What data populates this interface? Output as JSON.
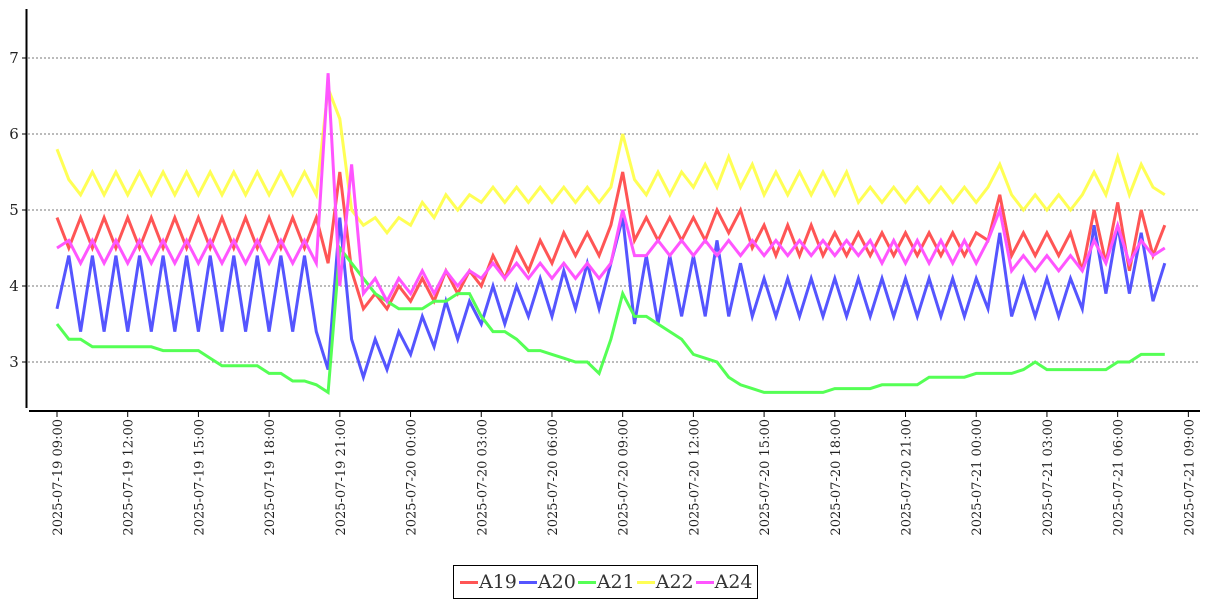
{
  "chart_data": {
    "type": "line",
    "title": "",
    "xlabel": "",
    "ylabel": "",
    "x_start": "2025-07-19 09:00",
    "x_step_minutes": 30,
    "ylim": [
      2.4,
      7.65
    ],
    "yticks": [
      3,
      4,
      5,
      6,
      7
    ],
    "xticks": [
      "2025-07-19  09:00",
      "2025-07-19  12:00",
      "2025-07-19  15:00",
      "2025-07-19  18:00",
      "2025-07-19  21:00",
      "2025-07-20  00:00",
      "2025-07-20  03:00",
      "2025-07-20  06:00",
      "2025-07-20  09:00",
      "2025-07-20  12:00",
      "2025-07-20  15:00",
      "2025-07-20  18:00",
      "2025-07-20  21:00",
      "2025-07-21  00:00",
      "2025-07-21  03:00",
      "2025-07-21  06:00",
      "2025-07-21  09:00"
    ],
    "grid": "horizontal dotted",
    "legend_position": "bottom-center",
    "series": [
      {
        "name": "A19",
        "color": "#ff5555",
        "values": [
          4.9,
          4.5,
          4.9,
          4.5,
          4.9,
          4.5,
          4.9,
          4.5,
          4.9,
          4.5,
          4.9,
          4.5,
          4.9,
          4.5,
          4.9,
          4.5,
          4.9,
          4.5,
          4.9,
          4.5,
          4.9,
          4.5,
          4.9,
          4.3,
          5.5,
          4.2,
          3.7,
          3.9,
          3.7,
          4.0,
          3.8,
          4.1,
          3.8,
          4.2,
          3.9,
          4.2,
          4.0,
          4.4,
          4.1,
          4.5,
          4.2,
          4.6,
          4.3,
          4.7,
          4.4,
          4.7,
          4.4,
          4.8,
          5.5,
          4.6,
          4.9,
          4.6,
          4.9,
          4.6,
          4.9,
          4.6,
          5.0,
          4.7,
          5.0,
          4.5,
          4.8,
          4.4,
          4.8,
          4.4,
          4.8,
          4.4,
          4.7,
          4.4,
          4.7,
          4.4,
          4.7,
          4.4,
          4.7,
          4.4,
          4.7,
          4.4,
          4.7,
          4.4,
          4.7,
          4.6,
          5.2,
          4.4,
          4.7,
          4.4,
          4.7,
          4.4,
          4.7,
          4.2,
          5.0,
          4.3,
          5.1,
          4.2,
          5.0,
          4.4,
          4.8
        ]
      },
      {
        "name": "A20",
        "color": "#5555ff",
        "values": [
          3.7,
          4.4,
          3.4,
          4.4,
          3.4,
          4.4,
          3.4,
          4.4,
          3.4,
          4.4,
          3.4,
          4.4,
          3.4,
          4.4,
          3.4,
          4.4,
          3.4,
          4.4,
          3.4,
          4.4,
          3.4,
          4.4,
          3.4,
          2.9,
          4.9,
          3.3,
          2.8,
          3.3,
          2.9,
          3.4,
          3.1,
          3.6,
          3.2,
          3.8,
          3.3,
          3.8,
          3.5,
          4.0,
          3.5,
          4.0,
          3.6,
          4.1,
          3.6,
          4.2,
          3.7,
          4.3,
          3.7,
          4.3,
          4.9,
          3.5,
          4.4,
          3.5,
          4.4,
          3.6,
          4.4,
          3.6,
          4.6,
          3.6,
          4.3,
          3.6,
          4.1,
          3.6,
          4.1,
          3.6,
          4.1,
          3.6,
          4.1,
          3.6,
          4.1,
          3.6,
          4.1,
          3.6,
          4.1,
          3.6,
          4.1,
          3.6,
          4.1,
          3.6,
          4.1,
          3.7,
          4.7,
          3.6,
          4.1,
          3.6,
          4.1,
          3.6,
          4.1,
          3.7,
          4.8,
          3.9,
          4.8,
          3.9,
          4.7,
          3.8,
          4.3
        ]
      },
      {
        "name": "A21",
        "color": "#55ff55",
        "values": [
          3.5,
          3.3,
          3.3,
          3.2,
          3.2,
          3.2,
          3.2,
          3.2,
          3.2,
          3.15,
          3.15,
          3.15,
          3.15,
          3.05,
          2.95,
          2.95,
          2.95,
          2.95,
          2.85,
          2.85,
          2.75,
          2.75,
          2.7,
          2.6,
          4.5,
          4.3,
          4.1,
          3.9,
          3.8,
          3.7,
          3.7,
          3.7,
          3.8,
          3.8,
          3.9,
          3.9,
          3.6,
          3.4,
          3.4,
          3.3,
          3.15,
          3.15,
          3.1,
          3.05,
          3.0,
          3.0,
          2.85,
          3.3,
          3.9,
          3.6,
          3.6,
          3.5,
          3.4,
          3.3,
          3.1,
          3.05,
          3.0,
          2.8,
          2.7,
          2.65,
          2.6,
          2.6,
          2.6,
          2.6,
          2.6,
          2.6,
          2.65,
          2.65,
          2.65,
          2.65,
          2.7,
          2.7,
          2.7,
          2.7,
          2.8,
          2.8,
          2.8,
          2.8,
          2.85,
          2.85,
          2.85,
          2.85,
          2.9,
          3.0,
          2.9,
          2.9,
          2.9,
          2.9,
          2.9,
          2.9,
          3.0,
          3.0,
          3.1,
          3.1,
          3.1
        ]
      },
      {
        "name": "A22",
        "color": "#ffff55",
        "values": [
          5.8,
          5.4,
          5.2,
          5.5,
          5.2,
          5.5,
          5.2,
          5.5,
          5.2,
          5.5,
          5.2,
          5.5,
          5.2,
          5.5,
          5.2,
          5.5,
          5.2,
          5.5,
          5.2,
          5.5,
          5.2,
          5.5,
          5.2,
          6.6,
          6.2,
          5.0,
          4.8,
          4.9,
          4.7,
          4.9,
          4.8,
          5.1,
          4.9,
          5.2,
          5.0,
          5.2,
          5.1,
          5.3,
          5.1,
          5.3,
          5.1,
          5.3,
          5.1,
          5.3,
          5.1,
          5.3,
          5.1,
          5.3,
          6.0,
          5.4,
          5.2,
          5.5,
          5.2,
          5.5,
          5.3,
          5.6,
          5.3,
          5.7,
          5.3,
          5.6,
          5.2,
          5.5,
          5.2,
          5.5,
          5.2,
          5.5,
          5.2,
          5.5,
          5.1,
          5.3,
          5.1,
          5.3,
          5.1,
          5.3,
          5.1,
          5.3,
          5.1,
          5.3,
          5.1,
          5.3,
          5.6,
          5.2,
          5.0,
          5.2,
          5.0,
          5.2,
          5.0,
          5.2,
          5.5,
          5.2,
          5.7,
          5.2,
          5.6,
          5.3,
          5.2
        ]
      },
      {
        "name": "A24",
        "color": "#ff55ff",
        "values": [
          4.5,
          4.6,
          4.3,
          4.6,
          4.3,
          4.6,
          4.3,
          4.6,
          4.3,
          4.6,
          4.3,
          4.6,
          4.3,
          4.6,
          4.3,
          4.6,
          4.3,
          4.6,
          4.3,
          4.6,
          4.3,
          4.6,
          4.3,
          6.8,
          4.0,
          5.6,
          3.9,
          4.1,
          3.8,
          4.1,
          3.9,
          4.2,
          3.9,
          4.2,
          4.0,
          4.2,
          4.1,
          4.3,
          4.1,
          4.3,
          4.1,
          4.3,
          4.1,
          4.3,
          4.1,
          4.3,
          4.1,
          4.3,
          5.0,
          4.4,
          4.4,
          4.6,
          4.4,
          4.6,
          4.4,
          4.6,
          4.4,
          4.6,
          4.4,
          4.6,
          4.4,
          4.6,
          4.4,
          4.6,
          4.4,
          4.6,
          4.4,
          4.6,
          4.4,
          4.6,
          4.3,
          4.6,
          4.3,
          4.6,
          4.3,
          4.6,
          4.3,
          4.6,
          4.3,
          4.6,
          5.0,
          4.2,
          4.4,
          4.2,
          4.4,
          4.2,
          4.4,
          4.2,
          4.6,
          4.3,
          4.8,
          4.3,
          4.6,
          4.4,
          4.5
        ]
      }
    ]
  }
}
